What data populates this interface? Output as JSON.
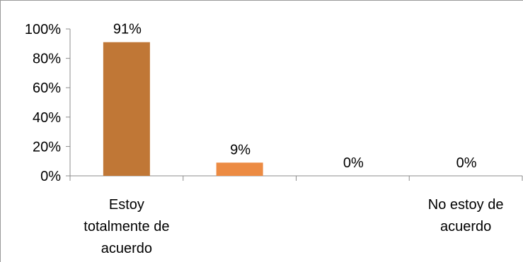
{
  "chart_data": {
    "type": "bar",
    "categories": [
      "Estoy totalmente de acuerdo",
      "",
      "",
      "No estoy de acuerdo"
    ],
    "category_label_lines": [
      [
        "Estoy",
        "totalmente de",
        "acuerdo"
      ],
      [],
      [],
      [
        "No estoy de",
        "acuerdo"
      ]
    ],
    "values": [
      91,
      9,
      0,
      0
    ],
    "data_labels": [
      "91%",
      "9%",
      "0%",
      "0%"
    ],
    "bar_colors": [
      "#c07736",
      "#ec8b43",
      "#ec8b43",
      "#ec8b43"
    ],
    "ylim": [
      0,
      100
    ],
    "ytick_values": [
      0,
      20,
      40,
      60,
      80,
      100
    ],
    "ytick_labels": [
      "0%",
      "20%",
      "40%",
      "60%",
      "80%",
      "100%"
    ],
    "grid": false,
    "legend": "none",
    "title": "",
    "xlabel": "",
    "ylabel": ""
  }
}
